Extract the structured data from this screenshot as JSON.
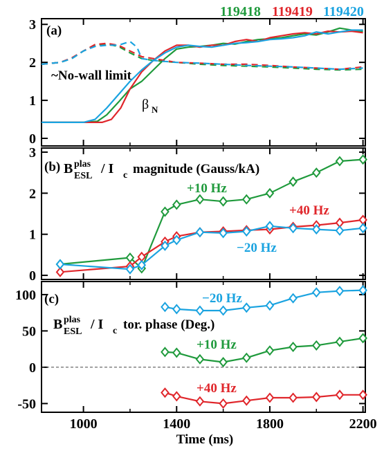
{
  "shots": [
    {
      "label": "119418",
      "color": "#1f9a3c"
    },
    {
      "label": "119419",
      "color": "#e0262b"
    },
    {
      "label": "119420",
      "color": "#1aa3e0"
    }
  ],
  "chart_data": [
    {
      "panel": "(a)",
      "type": "line",
      "xlim": [
        820,
        2210
      ],
      "ylim": [
        -0.2,
        3.15
      ],
      "yticks": [
        "0",
        "1",
        "2",
        "3"
      ],
      "annotations": [
        "~No-wall limit",
        "β",
        "N"
      ],
      "series": [
        {
          "name": "119418",
          "style": "solid",
          "color": "#1f9a3c",
          "x": [
            820,
            900,
            1000,
            1060,
            1100,
            1150,
            1200,
            1250,
            1300,
            1350,
            1400,
            1450,
            1500,
            1550,
            1600,
            1650,
            1700,
            1750,
            1800,
            1850,
            1900,
            1950,
            2000,
            2050,
            2100,
            2150,
            2200
          ],
          "y": [
            0.42,
            0.42,
            0.42,
            0.45,
            0.62,
            0.95,
            1.3,
            1.5,
            1.8,
            2.1,
            2.35,
            2.4,
            2.42,
            2.45,
            2.5,
            2.48,
            2.55,
            2.6,
            2.62,
            2.65,
            2.7,
            2.75,
            2.72,
            2.8,
            2.9,
            2.85,
            2.82
          ]
        },
        {
          "name": "119419",
          "style": "solid",
          "color": "#e0262b",
          "x": [
            820,
            900,
            1000,
            1080,
            1120,
            1160,
            1200,
            1250,
            1300,
            1350,
            1400,
            1450,
            1500,
            1550,
            1600,
            1650,
            1700,
            1750,
            1800,
            1850,
            1900,
            1950,
            2000,
            2050,
            2100,
            2150,
            2200
          ],
          "y": [
            0.42,
            0.42,
            0.42,
            0.42,
            0.5,
            0.8,
            1.3,
            1.75,
            2.05,
            2.3,
            2.45,
            2.45,
            2.4,
            2.45,
            2.45,
            2.55,
            2.6,
            2.55,
            2.65,
            2.7,
            2.75,
            2.78,
            2.75,
            2.82,
            2.8,
            2.82,
            2.78
          ]
        },
        {
          "name": "119420",
          "style": "solid",
          "color": "#1aa3e0",
          "x": [
            820,
            900,
            1000,
            1050,
            1100,
            1150,
            1200,
            1250,
            1300,
            1350,
            1400,
            1450,
            1500,
            1550,
            1600,
            1650,
            1700,
            1750,
            1800,
            1850,
            1900,
            1950,
            2000,
            2050,
            2100,
            2150,
            2200
          ],
          "y": [
            0.42,
            0.42,
            0.42,
            0.5,
            0.8,
            1.15,
            1.5,
            1.8,
            2.05,
            2.25,
            2.4,
            2.45,
            2.42,
            2.4,
            2.45,
            2.5,
            2.52,
            2.55,
            2.6,
            2.62,
            2.65,
            2.7,
            2.8,
            2.75,
            2.8,
            2.85,
            2.85
          ]
        },
        {
          "name": "119418",
          "style": "dashed",
          "color": "#1f9a3c",
          "x": [
            820,
            900,
            950,
            1000,
            1050,
            1100,
            1150,
            1200,
            1250,
            1300,
            1400,
            1500,
            1600,
            1700,
            1800,
            1900,
            2000,
            2100,
            2200
          ],
          "y": [
            1.95,
            2.0,
            2.1,
            2.3,
            2.45,
            2.48,
            2.42,
            2.25,
            2.1,
            2.05,
            2.0,
            1.95,
            1.92,
            1.9,
            1.88,
            1.85,
            1.82,
            1.8,
            1.82
          ]
        },
        {
          "name": "119419",
          "style": "dashed",
          "color": "#e0262b",
          "x": [
            820,
            900,
            950,
            1000,
            1050,
            1100,
            1150,
            1200,
            1250,
            1300,
            1400,
            1500,
            1600,
            1700,
            1800,
            1900,
            2000,
            2100,
            2200
          ],
          "y": [
            1.95,
            2.0,
            2.12,
            2.3,
            2.47,
            2.5,
            2.45,
            2.3,
            2.15,
            2.1,
            2.0,
            1.98,
            1.95,
            1.95,
            1.92,
            1.88,
            1.85,
            1.82,
            1.88
          ]
        },
        {
          "name": "119420",
          "style": "dashed",
          "color": "#1aa3e0",
          "x": [
            820,
            900,
            950,
            1000,
            1050,
            1100,
            1150,
            1200,
            1230,
            1250,
            1300,
            1400,
            1500,
            1600,
            1700,
            1800,
            1900,
            2000,
            2100,
            2200
          ],
          "y": [
            1.95,
            2.0,
            2.1,
            2.3,
            2.42,
            2.45,
            2.45,
            2.55,
            2.4,
            2.1,
            2.05,
            2.0,
            1.98,
            1.95,
            1.92,
            1.9,
            1.88,
            1.85,
            1.82,
            1.85
          ]
        }
      ]
    },
    {
      "panel": "(b)",
      "type": "line",
      "xlim": [
        820,
        2210
      ],
      "ylim": [
        -0.1,
        3.1
      ],
      "yticks": [
        "0",
        "1",
        "2",
        "3"
      ],
      "title_parts": [
        "B",
        "plas",
        "ESL",
        "/ I",
        "c",
        "magnitude (Gauss/kA)"
      ],
      "annotations": [
        "+10 Hz",
        "+40 Hz",
        "−20 Hz"
      ],
      "series": [
        {
          "name": "+10 Hz",
          "color": "#1f9a3c",
          "x": [
            900,
            1200,
            1250,
            1350,
            1400,
            1500,
            1600,
            1700,
            1800,
            1900,
            2000,
            2100,
            2200
          ],
          "y": [
            0.27,
            0.43,
            0.17,
            1.55,
            1.72,
            1.85,
            1.8,
            1.85,
            2.0,
            2.28,
            2.5,
            2.78,
            2.82
          ]
        },
        {
          "name": "+40 Hz",
          "color": "#e0262b",
          "x": [
            900,
            1200,
            1250,
            1350,
            1400,
            1500,
            1600,
            1700,
            1800,
            1900,
            2000,
            2100,
            2200
          ],
          "y": [
            0.08,
            0.22,
            0.45,
            0.82,
            0.95,
            1.05,
            1.07,
            1.1,
            1.12,
            1.18,
            1.22,
            1.28,
            1.35
          ]
        },
        {
          "name": "−20 Hz",
          "color": "#1aa3e0",
          "x": [
            900,
            1200,
            1250,
            1350,
            1400,
            1500,
            1600,
            1700,
            1800,
            1900,
            2000,
            2100,
            2200
          ],
          "y": [
            0.27,
            0.15,
            0.25,
            0.72,
            0.86,
            1.05,
            1.03,
            1.07,
            1.2,
            1.15,
            1.12,
            1.09,
            1.15
          ]
        }
      ]
    },
    {
      "panel": "(c)",
      "type": "line",
      "xlim": [
        820,
        2210
      ],
      "ylim": [
        -62,
        118
      ],
      "yticks": [
        "100",
        "50",
        "0",
        "-50"
      ],
      "xticks": [
        "1000",
        "1400",
        "1800",
        "2200"
      ],
      "xlabel": "Time (ms)",
      "zero_line": "dashed",
      "title_parts": [
        "B",
        "plas",
        "ESL",
        "/ I",
        "c",
        "tor. phase (Deg.)"
      ],
      "annotations": [
        "−20 Hz",
        "+10 Hz",
        "+40 Hz"
      ],
      "series": [
        {
          "name": "−20 Hz",
          "color": "#1aa3e0",
          "x": [
            1350,
            1400,
            1500,
            1600,
            1700,
            1800,
            1900,
            2000,
            2100,
            2200
          ],
          "y": [
            83,
            80,
            78,
            78,
            82,
            85,
            95,
            103,
            105,
            106
          ]
        },
        {
          "name": "+10 Hz",
          "color": "#1f9a3c",
          "x": [
            1350,
            1400,
            1500,
            1600,
            1700,
            1800,
            1900,
            2000,
            2100,
            2200
          ],
          "y": [
            21,
            20,
            11,
            7,
            13,
            23,
            28,
            30,
            35,
            40
          ]
        },
        {
          "name": "+40 Hz",
          "color": "#e0262b",
          "x": [
            1350,
            1400,
            1500,
            1600,
            1700,
            1800,
            1900,
            2000,
            2100,
            2200
          ],
          "y": [
            -35,
            -40,
            -47,
            -50,
            -46,
            -42,
            -42,
            -41,
            -38,
            -38
          ]
        }
      ]
    }
  ]
}
